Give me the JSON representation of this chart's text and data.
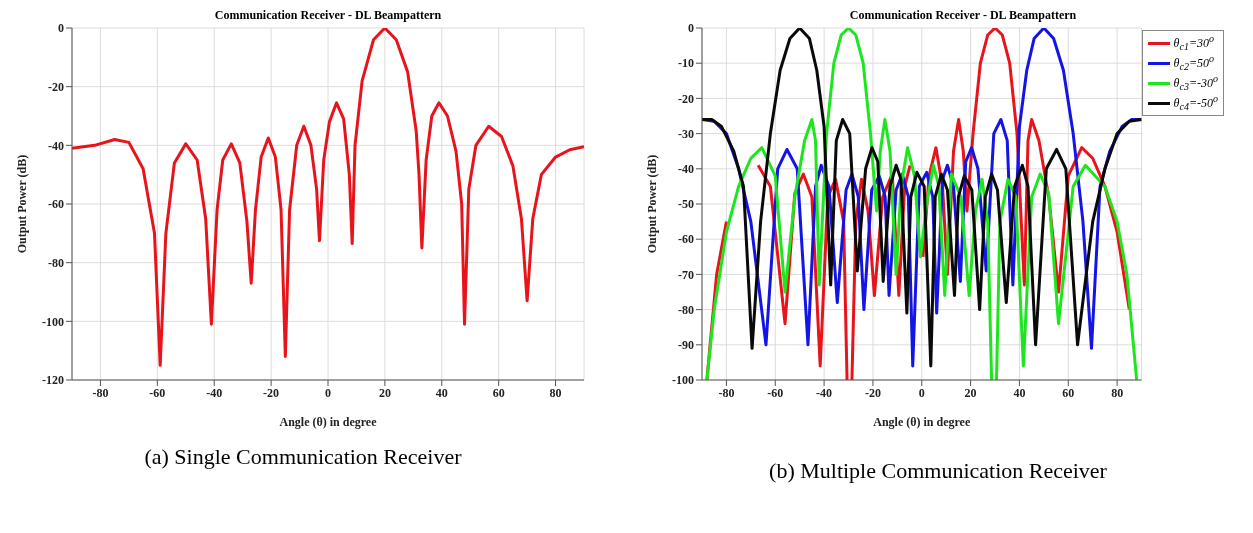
{
  "chart_data": [
    {
      "type": "line",
      "title": "Communication Receiver - DL Beampattern",
      "xlabel": "Angle (θ) in degree",
      "ylabel": "Output Power (dB)",
      "xlim": [
        -90,
        90
      ],
      "ylim": [
        -120,
        0
      ],
      "xticks": [
        -80,
        -60,
        -40,
        -20,
        0,
        20,
        40,
        60,
        80
      ],
      "yticks": [
        -120,
        -100,
        -80,
        -60,
        -40,
        -20,
        0
      ],
      "grid": true,
      "legend": false,
      "annotations": [
        "(a) Single Communication Receiver"
      ],
      "series": [
        {
          "color": "#e8141c",
          "x": [
            -90,
            -82,
            -75,
            -70,
            -65,
            -61,
            -59,
            -57,
            -54,
            -50,
            -46,
            -43,
            -41,
            -39,
            -37,
            -34,
            -31,
            -28.5,
            -27,
            -25.5,
            -23.5,
            -21,
            -18.5,
            -16.5,
            -15,
            -13.5,
            -11,
            -8.5,
            -6,
            -4,
            -3,
            -1.5,
            0.5,
            3,
            5.5,
            7.5,
            8.5,
            9.5,
            12,
            16,
            20,
            24,
            28,
            31,
            32,
            33,
            34.5,
            36.5,
            39,
            42,
            45,
            47,
            48,
            49.5,
            52,
            56.5,
            61,
            65,
            68,
            70,
            72,
            75,
            80,
            85,
            90
          ],
          "values": [
            -41,
            -40,
            -38,
            -39,
            -48,
            -70,
            -115,
            -70,
            -46,
            -39.5,
            -45,
            -65,
            -101,
            -62,
            -45,
            -39.5,
            -46,
            -66,
            -87,
            -62,
            -44,
            -37.5,
            -44,
            -62,
            -112,
            -62,
            -40,
            -33.5,
            -40,
            -55,
            -72.5,
            -45,
            -32,
            -25.5,
            -31,
            -50,
            -73.5,
            -40,
            -18,
            -4,
            0,
            -4,
            -15,
            -35,
            -50,
            -75,
            -45,
            -30,
            -25.5,
            -30,
            -42,
            -60,
            -101,
            -55,
            -40,
            -33.5,
            -37,
            -47,
            -65,
            -93,
            -65,
            -50,
            -44,
            -41.5,
            -40.5
          ]
        }
      ]
    },
    {
      "type": "line",
      "title": "Communication Receiver - DL Beampattern",
      "xlabel": "Angle (θ) in degree",
      "ylabel": "Output Power (dB)",
      "xlim": [
        -90,
        90
      ],
      "ylim": [
        -100,
        0
      ],
      "xticks": [
        -80,
        -60,
        -40,
        -20,
        0,
        20,
        40,
        60,
        80
      ],
      "yticks": [
        -100,
        -90,
        -80,
        -70,
        -60,
        -50,
        -40,
        -30,
        -20,
        -10,
        0
      ],
      "grid": true,
      "legend": "top right",
      "annotations": [
        "(b) Multiple Communication Receiver"
      ],
      "series": [
        {
          "name": "θ$_{c1}$=30$^{o}$",
          "color": "#e8141c",
          "x": [
            -88,
            -84,
            -80,
            -75,
            -67,
            -62,
            -56,
            -52,
            -48.5,
            -45,
            -41.6,
            -38.5,
            -35.3,
            -32,
            -30.6,
            -29.6,
            -28.6,
            -27,
            -24.7,
            -22,
            -19.4,
            -16,
            -12.1,
            -9.4,
            -7,
            -4.8,
            -2,
            0.5,
            3,
            5.8,
            8.5,
            10.5,
            13,
            15.1,
            17,
            18.5,
            21,
            24,
            27,
            30,
            33,
            36,
            39,
            42,
            43.5,
            45,
            48,
            52,
            56,
            60,
            65.5,
            70,
            75,
            80,
            85
          ],
          "values": [
            -100,
            -70,
            -55,
            null,
            -39,
            -45,
            -84,
            -47,
            -41.5,
            -48,
            -96,
            -48,
            -43,
            -55,
            -100,
            null,
            -100,
            -55,
            -43,
            -52,
            -76,
            -48,
            -41.5,
            -76,
            -45,
            -39,
            null,
            -65,
            -42,
            -34,
            -45,
            -70,
            -35,
            -26,
            -35,
            -52,
            -30,
            -10,
            -2,
            0,
            -2,
            -10,
            -30,
            -73,
            -32,
            -26,
            -32,
            -48,
            -75,
            -42,
            -34,
            -37,
            -45,
            -58,
            -80
          ]
        },
        {
          "name": "θ$_{c2}$=50$^{o}$",
          "color": "#1414e6",
          "x": [
            -90,
            -85,
            -80,
            -75,
            -70,
            -63.8,
            -59,
            -55.2,
            -51,
            -46.6,
            -43.5,
            -41.2,
            -38,
            -34.6,
            -31,
            -28.6,
            -26,
            -23.7,
            -20.5,
            -17.4,
            -15,
            -13.4,
            -10.5,
            -8,
            -5.5,
            -3.7,
            -1,
            2,
            4.5,
            6.1,
            8.5,
            10.5,
            13,
            15.8,
            18,
            20.4,
            23,
            26.4,
            29.5,
            32.4,
            35,
            37.3,
            40,
            43,
            46,
            50,
            54,
            58,
            62,
            66,
            69.5,
            73,
            77,
            82,
            86,
            90
          ],
          "values": [
            -26,
            -26.5,
            -30,
            -40,
            -55,
            -90,
            -40,
            -34.5,
            -40,
            -90,
            -45,
            -39,
            -45,
            -78,
            -46,
            -41.5,
            -48,
            -80,
            -46,
            -42,
            -48,
            -76,
            -46,
            -41.5,
            -48,
            -96,
            -45,
            -41,
            -48,
            -81,
            -43,
            -39,
            -45,
            -72,
            -38,
            -34,
            -40,
            -69,
            -30,
            -26,
            -32,
            -73,
            -28,
            -12,
            -3,
            0,
            -3,
            -12,
            -30,
            -55,
            -91,
            -45,
            -35,
            -28,
            -26,
            -26
          ]
        },
        {
          "name": "θ$_{c3}$=-30$^{o}$",
          "color": "#1ee61e",
          "x": [
            -88,
            -85,
            -80,
            -75,
            -70,
            -65.5,
            -60,
            -56,
            -52,
            -48,
            -45,
            -43.5,
            -42,
            -39,
            -36,
            -33,
            -30,
            -27,
            -24,
            -21,
            -18.5,
            -17,
            -15.1,
            -13,
            -10.5,
            -8.5,
            -5.8,
            -3,
            -0.5,
            2,
            4.8,
            7,
            9.4,
            12.1,
            16,
            19.4,
            22,
            24.7,
            27,
            28.6,
            29.6,
            30.6,
            32,
            35.3,
            38.5,
            41.6,
            45,
            48.5,
            52,
            56,
            62,
            67,
            75,
            80,
            84,
            88
          ],
          "values": [
            -100,
            -80,
            -58,
            -45,
            -37,
            -34,
            -42,
            -75,
            -48,
            -32,
            -26,
            -32,
            -73,
            -30,
            -10,
            -2,
            0,
            -2,
            -10,
            -30,
            -52,
            -35,
            -26,
            -35,
            -70,
            -45,
            -34,
            -42,
            -65,
            -50,
            -39,
            -45,
            -76,
            -41.5,
            -48,
            -76,
            -52,
            -43,
            -55,
            -100,
            null,
            -100,
            -55,
            -43,
            -48,
            -96,
            -48,
            -41.5,
            -47,
            -84,
            -45,
            -39,
            -45,
            -55,
            -70,
            -100
          ]
        },
        {
          "name": "θ$_{c4}$=-50$^{o}$",
          "color": "#0a0a0a",
          "x": [
            -90,
            -86,
            -82,
            -77,
            -73,
            -69.5,
            -66,
            -62,
            -58,
            -54,
            -50,
            -46,
            -43,
            -40,
            -37.3,
            -35,
            -32.4,
            -29.5,
            -26.4,
            -23,
            -20.4,
            -18,
            -15.8,
            -13,
            -10.5,
            -8.5,
            -6.1,
            -4.5,
            -2,
            1,
            3.7,
            5.5,
            8,
            10.5,
            13.4,
            15,
            17.4,
            20.5,
            23.7,
            26,
            28.6,
            31,
            34.6,
            38,
            41.2,
            43.5,
            46.6,
            51,
            55.2,
            59,
            63.8,
            70,
            75,
            80,
            85,
            90
          ],
          "values": [
            -26,
            -26,
            -28,
            -35,
            -45,
            -91,
            -55,
            -30,
            -12,
            -3,
            0,
            -3,
            -12,
            -28,
            -73,
            -32,
            -26,
            -30,
            -69,
            -40,
            -34,
            -38,
            -72,
            -45,
            -39,
            -43,
            -81,
            -48,
            -41,
            -45,
            -96,
            -48,
            -41.5,
            -46,
            -76,
            -48,
            -42,
            -46,
            -80,
            -48,
            -41.5,
            -46,
            -78,
            -45,
            -39,
            -45,
            -90,
            -40,
            -34.5,
            -40,
            -90,
            -55,
            -40,
            -30,
            -26.5,
            -26
          ]
        }
      ]
    }
  ]
}
